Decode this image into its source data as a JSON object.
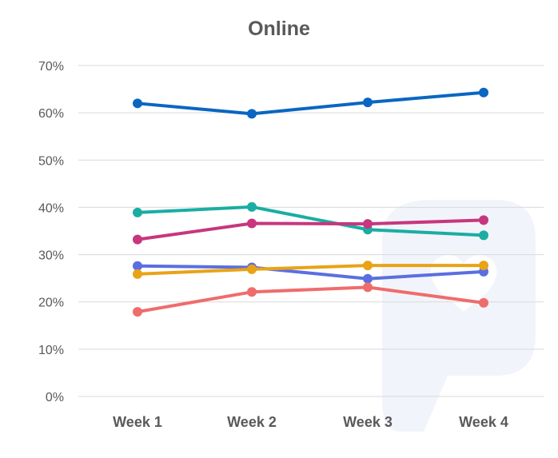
{
  "chart_data": {
    "type": "line",
    "title": "Online",
    "xlabel": "",
    "ylabel": "",
    "categories": [
      "Week 1",
      "Week 2",
      "Week 3",
      "Week 4"
    ],
    "ylim": [
      0,
      70
    ],
    "yticks": [
      0,
      10,
      20,
      30,
      40,
      50,
      60,
      70
    ],
    "ytick_labels": [
      "0%",
      "10%",
      "20%",
      "30%",
      "40%",
      "50%",
      "60%",
      "70%"
    ],
    "grid": true,
    "legend": "none",
    "series": [
      {
        "color": "#0a66c2",
        "values": [
          62,
          59.8,
          62.2,
          64.3
        ]
      },
      {
        "color": "#1aada3",
        "values": [
          38.9,
          40.1,
          35.3,
          34.1
        ]
      },
      {
        "color": "#c7367f",
        "values": [
          33.2,
          36.6,
          36.5,
          37.3
        ]
      },
      {
        "color": "#5b6ee1",
        "values": [
          27.6,
          27.3,
          24.9,
          26.4
        ]
      },
      {
        "color": "#e8a317",
        "values": [
          25.9,
          26.9,
          27.7,
          27.7
        ]
      },
      {
        "color": "#ef6c6c",
        "values": [
          17.9,
          22.1,
          23.1,
          19.8
        ]
      }
    ]
  }
}
